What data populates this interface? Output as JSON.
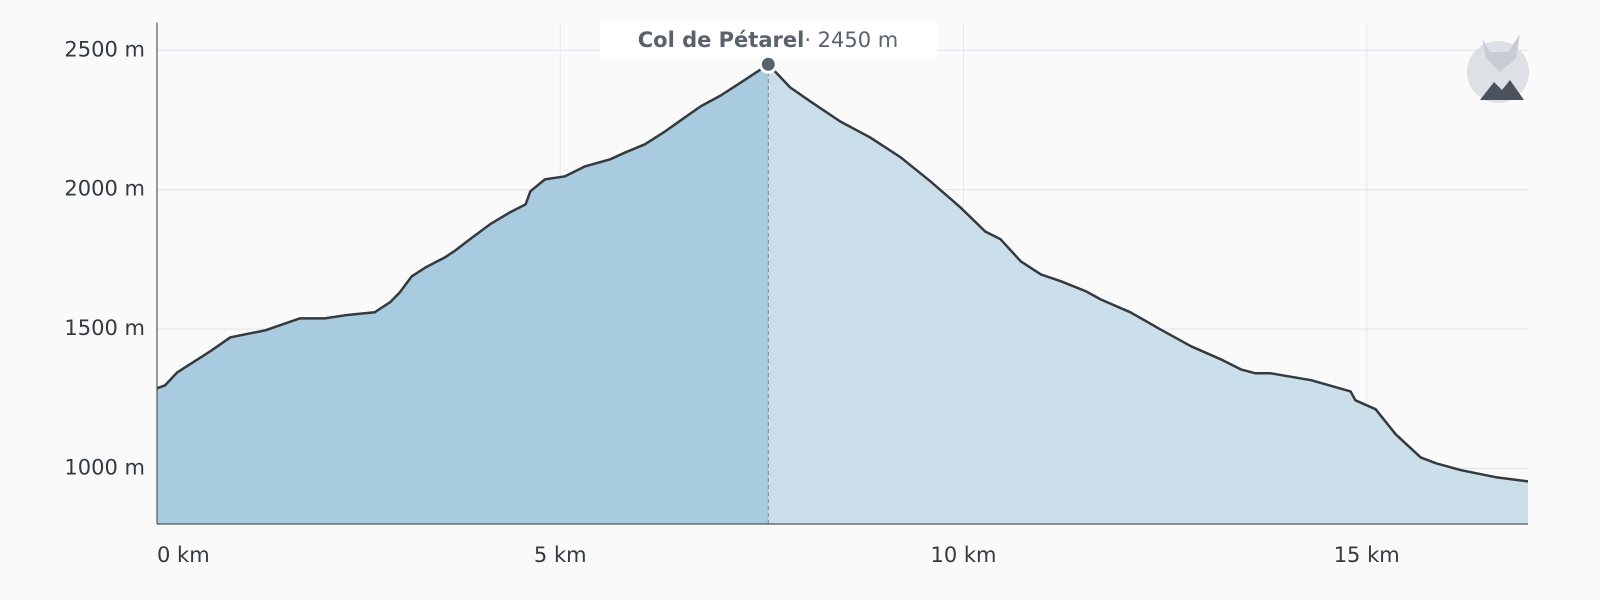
{
  "chart_data": {
    "type": "area",
    "x": [
      0,
      0.1,
      0.25,
      0.66,
      0.91,
      1.34,
      1.59,
      1.77,
      2.08,
      2.33,
      2.7,
      2.89,
      3.01,
      3.16,
      3.33,
      3.57,
      3.7,
      3.88,
      4.13,
      4.38,
      4.57,
      4.63,
      4.81,
      5.06,
      5.31,
      5.62,
      5.81,
      6.05,
      6.3,
      6.55,
      6.74,
      6.99,
      7.3,
      7.58,
      7.85,
      8.1,
      8.47,
      8.84,
      9.22,
      9.59,
      9.96,
      10.27,
      10.46,
      10.71,
      10.96,
      11.21,
      11.52,
      11.7,
      12.07,
      12.44,
      12.82,
      13.19,
      13.44,
      13.62,
      13.81,
      14.31,
      14.8,
      14.86,
      15.11,
      15.36,
      15.67,
      15.86,
      16.17,
      16.6,
      17
    ],
    "series": [
      {
        "color": "#333a40",
        "values": [
          1287,
          1298,
          1344,
          1420,
          1470,
          1495,
          1520,
          1538,
          1538,
          1549,
          1560,
          1596,
          1631,
          1689,
          1721,
          1757,
          1782,
          1822,
          1876,
          1919,
          1947,
          1994,
          2037,
          2048,
          2084,
          2109,
          2134,
          2163,
          2209,
          2260,
          2299,
          2338,
          2396,
          2450,
          2367,
          2317,
          2245,
          2188,
          2116,
          2030,
          1937,
          1850,
          1822,
          1743,
          1696,
          1671,
          1635,
          1606,
          1560,
          1499,
          1438,
          1391,
          1355,
          1341,
          1341,
          1316,
          1276,
          1244,
          1212,
          1122,
          1039,
          1018,
          993,
          968,
          953
        ]
      }
    ],
    "xlim": [
      0,
      17
    ],
    "xticks": [
      {
        "value": 0,
        "label": "0 km"
      },
      {
        "value": 5,
        "label": "5 km"
      },
      {
        "value": 10,
        "label": "10 km"
      },
      {
        "value": 15,
        "label": "15 km"
      }
    ],
    "ylim": [
      800,
      2600
    ],
    "yticks": [
      {
        "value": 1000,
        "label": "1000 m"
      },
      {
        "value": 1500,
        "label": "1500 m"
      },
      {
        "value": 2000,
        "label": "2000 m"
      },
      {
        "value": 2500,
        "label": "2500 m"
      }
    ],
    "grid": true,
    "annotation": {
      "label": "Col de Pétarel",
      "value_label": "· 2450 m",
      "x": 7.58,
      "y": 2450
    }
  }
}
